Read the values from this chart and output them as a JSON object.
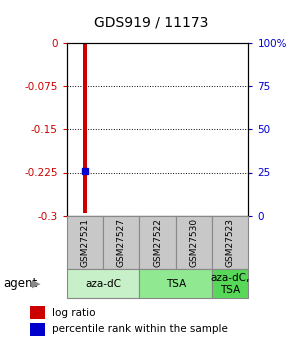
{
  "title": "GDS919 / 11173",
  "samples": [
    "GSM27521",
    "GSM27527",
    "GSM27522",
    "GSM27530",
    "GSM27523"
  ],
  "log_ratio_sample": 0,
  "log_ratio_value": -0.295,
  "percentile_value": -0.222,
  "yticks_left": [
    0,
    -0.075,
    -0.15,
    -0.225,
    -0.3
  ],
  "ytick_labels_left": [
    "0",
    "-0.075",
    "-0.15",
    "-0.225",
    "-0.3"
  ],
  "ytick_labels_right": [
    "100%",
    "75",
    "50",
    "25",
    "0"
  ],
  "right_ticks_y": [
    0,
    -0.075,
    -0.15,
    -0.225,
    -0.3
  ],
  "agent_groups": [
    {
      "label": "aza-dC",
      "start": 0,
      "end": 2,
      "color": "#c8f0c8"
    },
    {
      "label": "TSA",
      "start": 2,
      "end": 4,
      "color": "#90e890"
    },
    {
      "label": "aza-dC,\nTSA",
      "start": 4,
      "end": 5,
      "color": "#58d858"
    }
  ],
  "bar_color": "#cc0000",
  "marker_color": "#0000cc",
  "sample_box_color": "#c8c8c8",
  "sample_box_edge": "#888888",
  "left_tick_color": "#cc0000",
  "right_tick_color": "#0000cc",
  "legend_bar_label": "log ratio",
  "legend_marker_label": "percentile rank within the sample",
  "agent_label": "agent",
  "title_fontsize": 10,
  "tick_fontsize": 7.5,
  "sample_fontsize": 6.5,
  "agent_fontsize": 7.5,
  "legend_fontsize": 7.5
}
